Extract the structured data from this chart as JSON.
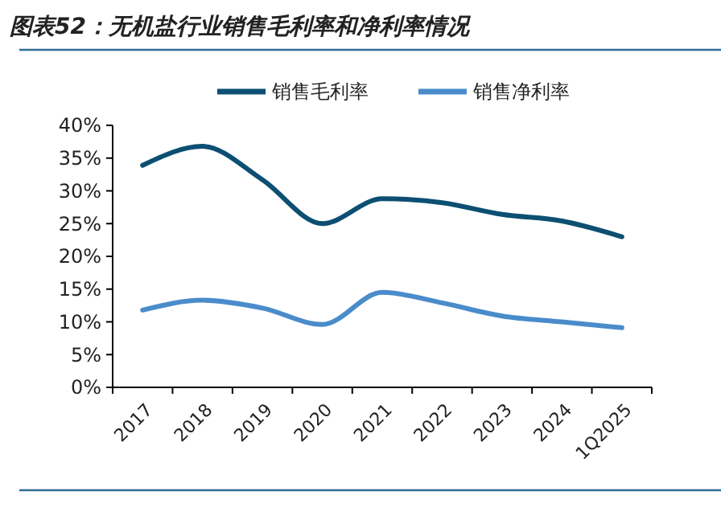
{
  "chart_data": {
    "type": "line",
    "title": "图表52：无机盐行业销售毛利率和净利率情况",
    "categories": [
      "2017",
      "2018",
      "2019",
      "2020",
      "2021",
      "2022",
      "2023",
      "2024",
      "1Q2025"
    ],
    "series": [
      {
        "name": "销售毛利率",
        "color": "#0c4f72",
        "values": [
          33.9,
          36.8,
          31.7,
          25.0,
          28.8,
          28.2,
          26.4,
          25.4,
          23.0
        ]
      },
      {
        "name": "销售净利率",
        "color": "#4a8ccb",
        "values": [
          11.8,
          13.3,
          12.1,
          9.6,
          14.5,
          12.9,
          10.9,
          10.0,
          9.1
        ]
      }
    ],
    "ylim": [
      0,
      40
    ],
    "yticks": [
      {
        "value": 0,
        "label": "0%"
      },
      {
        "value": 5,
        "label": "5%"
      },
      {
        "value": 10,
        "label": "10%"
      },
      {
        "value": 15,
        "label": "15%"
      },
      {
        "value": 20,
        "label": "20%"
      },
      {
        "value": 25,
        "label": "25%"
      },
      {
        "value": 30,
        "label": "30%"
      },
      {
        "value": 35,
        "label": "35%"
      },
      {
        "value": 40,
        "label": "40%"
      }
    ],
    "legend": "top",
    "grid": false,
    "marker": "none",
    "line_style": "solid"
  }
}
